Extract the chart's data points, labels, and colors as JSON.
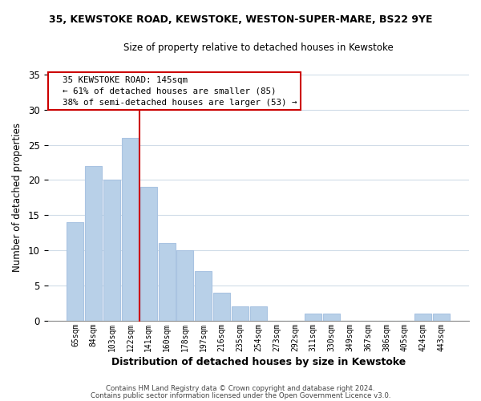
{
  "title1": "35, KEWSTOKE ROAD, KEWSTOKE, WESTON-SUPER-MARE, BS22 9YE",
  "title2": "Size of property relative to detached houses in Kewstoke",
  "xlabel": "Distribution of detached houses by size in Kewstoke",
  "ylabel": "Number of detached properties",
  "bar_labels": [
    "65sqm",
    "84sqm",
    "103sqm",
    "122sqm",
    "141sqm",
    "160sqm",
    "178sqm",
    "197sqm",
    "216sqm",
    "235sqm",
    "254sqm",
    "273sqm",
    "292sqm",
    "311sqm",
    "330sqm",
    "349sqm",
    "367sqm",
    "386sqm",
    "405sqm",
    "424sqm",
    "443sqm"
  ],
  "bar_values": [
    14,
    22,
    20,
    26,
    19,
    11,
    10,
    7,
    4,
    2,
    2,
    0,
    0,
    1,
    1,
    0,
    0,
    0,
    0,
    1,
    1
  ],
  "bar_color": "#b8d0e8",
  "bar_edge_color": "#aac4e2",
  "vline_index": 4,
  "vline_color": "#cc0000",
  "ylim": [
    0,
    35
  ],
  "yticks": [
    0,
    5,
    10,
    15,
    20,
    25,
    30,
    35
  ],
  "annotation_title": "35 KEWSTOKE ROAD: 145sqm",
  "annotation_line1": "← 61% of detached houses are smaller (85)",
  "annotation_line2": "38% of semi-detached houses are larger (53) →",
  "annotation_box_color": "#ffffff",
  "annotation_box_edge": "#cc0000",
  "footer1": "Contains HM Land Registry data © Crown copyright and database right 2024.",
  "footer2": "Contains public sector information licensed under the Open Government Licence v3.0.",
  "background_color": "#ffffff",
  "grid_color": "#d0dce8"
}
